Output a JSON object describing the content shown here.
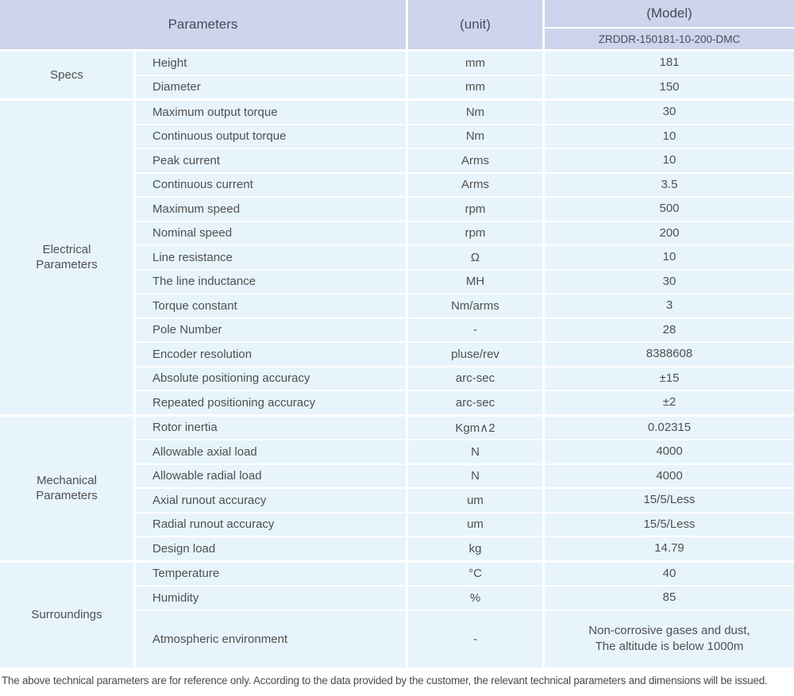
{
  "header": {
    "parameters_label": "Parameters",
    "unit_label": "(unit)",
    "model_label": "(Model)",
    "model_value": "ZRDDR-150181-10-200-DMC"
  },
  "sections": [
    {
      "name": "Specs",
      "rows": [
        {
          "param": "Height",
          "unit": "mm",
          "value": "181"
        },
        {
          "param": "Diameter",
          "unit": "mm",
          "value": "150"
        }
      ]
    },
    {
      "name": "Electrical\nParameters",
      "rows": [
        {
          "param": "Maximum output torque",
          "unit": "Nm",
          "value": "30"
        },
        {
          "param": "Continuous output torque",
          "unit": "Nm",
          "value": "10"
        },
        {
          "param": "Peak current",
          "unit": "Arms",
          "value": "10"
        },
        {
          "param": "Continuous current",
          "unit": "Arms",
          "value": "3.5"
        },
        {
          "param": "Maximum speed",
          "unit": "rpm",
          "value": "500"
        },
        {
          "param": "Nominal speed",
          "unit": "rpm",
          "value": "200"
        },
        {
          "param": "Line resistance",
          "unit": "Ω",
          "value": "10"
        },
        {
          "param": "The line inductance",
          "unit": "MH",
          "value": "30"
        },
        {
          "param": "Torque constant",
          "unit": "Nm/arms",
          "value": "3"
        },
        {
          "param": "Pole Number",
          "unit": "-",
          "value": "28"
        },
        {
          "param": "Encoder resolution",
          "unit": "pluse/rev",
          "value": "8388608"
        },
        {
          "param": "Absolute positioning accuracy",
          "unit": "arc-sec",
          "value": "±15"
        },
        {
          "param": "Repeated positioning accuracy",
          "unit": "arc-sec",
          "value": "±2"
        }
      ]
    },
    {
      "name": "Mechanical\nParameters",
      "rows": [
        {
          "param": "Rotor inertia",
          "unit": "Kgm∧2",
          "value": "0.02315"
        },
        {
          "param": "Allowable axial load",
          "unit": "N",
          "value": "4000"
        },
        {
          "param": "Allowable radial load",
          "unit": "N",
          "value": "4000"
        },
        {
          "param": "Axial runout accuracy",
          "unit": "um",
          "value": "15/5/Less"
        },
        {
          "param": "Radial runout accuracy",
          "unit": "um",
          "value": "15/5/Less"
        },
        {
          "param": "Design load",
          "unit": "kg",
          "value": "14.79"
        }
      ]
    },
    {
      "name": "Surroundings",
      "rows": [
        {
          "param": "Temperature",
          "unit": "°C",
          "value": "40"
        },
        {
          "param": "Humidity",
          "unit": "%",
          "value": "85"
        },
        {
          "param": "Atmospheric environment",
          "unit": "-",
          "value": "Non-corrosive gases and dust,\nThe altitude is below 1000m"
        }
      ]
    }
  ],
  "footnote": "The above technical parameters are for reference only. According to the data provided by the customer, the relevant technical parameters and dimensions will be issued.",
  "colors": {
    "header_bg": "#ccd5ec",
    "row_bg": "#e7f4fc"
  }
}
